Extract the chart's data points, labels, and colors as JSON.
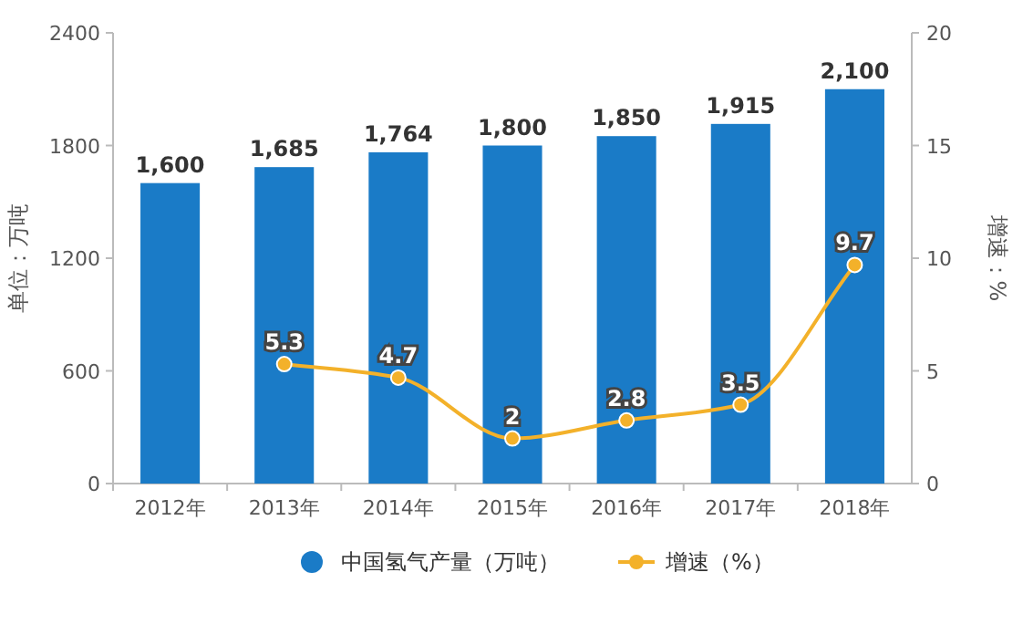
{
  "chart_data": {
    "type": "bar",
    "categories": [
      "2012年",
      "2013年",
      "2014年",
      "2015年",
      "2016年",
      "2017年",
      "2018年"
    ],
    "ylabel": "单位：万吨",
    "y2label": "增速：%",
    "ylim": [
      0,
      2400
    ],
    "yticks": [
      0,
      600,
      1200,
      1800,
      2400
    ],
    "y2lim": [
      0,
      20
    ],
    "y2ticks": [
      0,
      5,
      10,
      15,
      20
    ],
    "series": [
      {
        "name": "中国氢气产量（万吨）",
        "color": "#1a7bc7",
        "values": [
          1600,
          1685,
          1764,
          1800,
          1850,
          1915,
          2100
        ],
        "value_labels": [
          "1,600",
          "1,685",
          "1,764",
          "1,800",
          "1,850",
          "1,915",
          "2,100"
        ]
      },
      {
        "name": "增速（%）",
        "type": "line",
        "axis": "y2",
        "color": "#f3b12a",
        "marker": "circle",
        "values": [
          null,
          5.3,
          4.7,
          2,
          2.8,
          3.5,
          9.7
        ]
      }
    ],
    "data_labels": true,
    "legend": "bottom",
    "grid": false
  }
}
